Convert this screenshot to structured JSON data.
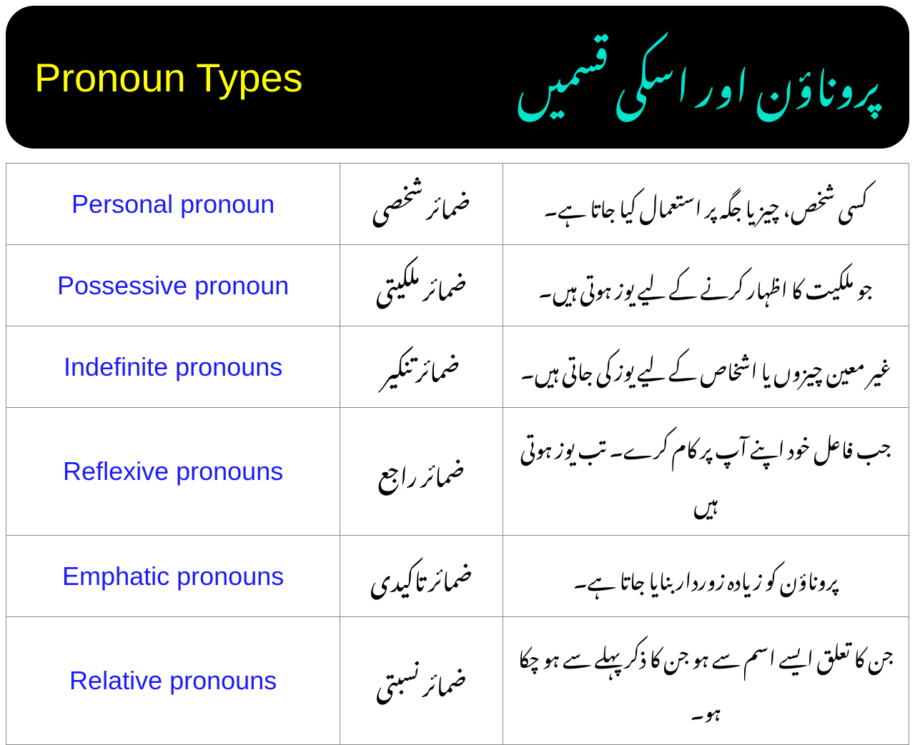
{
  "header": {
    "english": "Pronoun Types",
    "urdu": "پروناؤن اور اسکی قسمیں"
  },
  "table": {
    "columns": [
      "english",
      "urdu_name",
      "urdu_description"
    ],
    "column_widths": [
      "37%",
      "18%",
      "45%"
    ],
    "rows": [
      {
        "english": "Personal pronoun",
        "urdu_name": "ضمائر شخصی",
        "urdu_description": "کسی شخص، چیز یا جگہ پر استعمال کیا جاتا ہے۔"
      },
      {
        "english": "Possessive pronoun",
        "urdu_name": "ضمائر ملکیتی",
        "urdu_description": "جو ملکیت کا اظہار کرنے کے لیے یوز ہوتی ہیں۔"
      },
      {
        "english": "Indefinite pronouns",
        "urdu_name": "ضمائر تنکیر",
        "urdu_description": "غیر معین چیزوں یا اشخاص کے لیے یوز کی جاتی ہیں۔"
      },
      {
        "english": "Reflexive pronouns",
        "urdu_name": "ضمائر راجع",
        "urdu_description": "جب فاعل خود اپنے آپ پر کام کرے۔ تب یوز ہوتی ہیں"
      },
      {
        "english": "Emphatic pronouns",
        "urdu_name": "ضمائر تاکیدی",
        "urdu_description": "پروناؤن کو زیادہ زوردار بنایا جاتا ہے۔"
      },
      {
        "english": "Relative pronouns",
        "urdu_name": "ضمائر نسبتی",
        "urdu_description": "جن کا تعلق ایسے اسم سے ہو جن کا ذکر پہلے سے ہو چکا ہو۔"
      }
    ]
  },
  "styling": {
    "header_bg": "#000000",
    "header_radius": 40,
    "english_title_color": "#ffff00",
    "urdu_title_color": "#00e5cc",
    "english_title_fontsize": 56,
    "urdu_title_fontsize": 64,
    "english_cell_color": "#1a1aff",
    "urdu_cell_color": "#000000",
    "border_color": "#888888",
    "english_font": "Comic Sans MS",
    "urdu_font": "Noto Nastaliq Urdu",
    "english_cell_fontsize": 36,
    "urdu_name_fontsize": 34,
    "urdu_desc_fontsize": 30,
    "background_color": "#ffffff"
  }
}
